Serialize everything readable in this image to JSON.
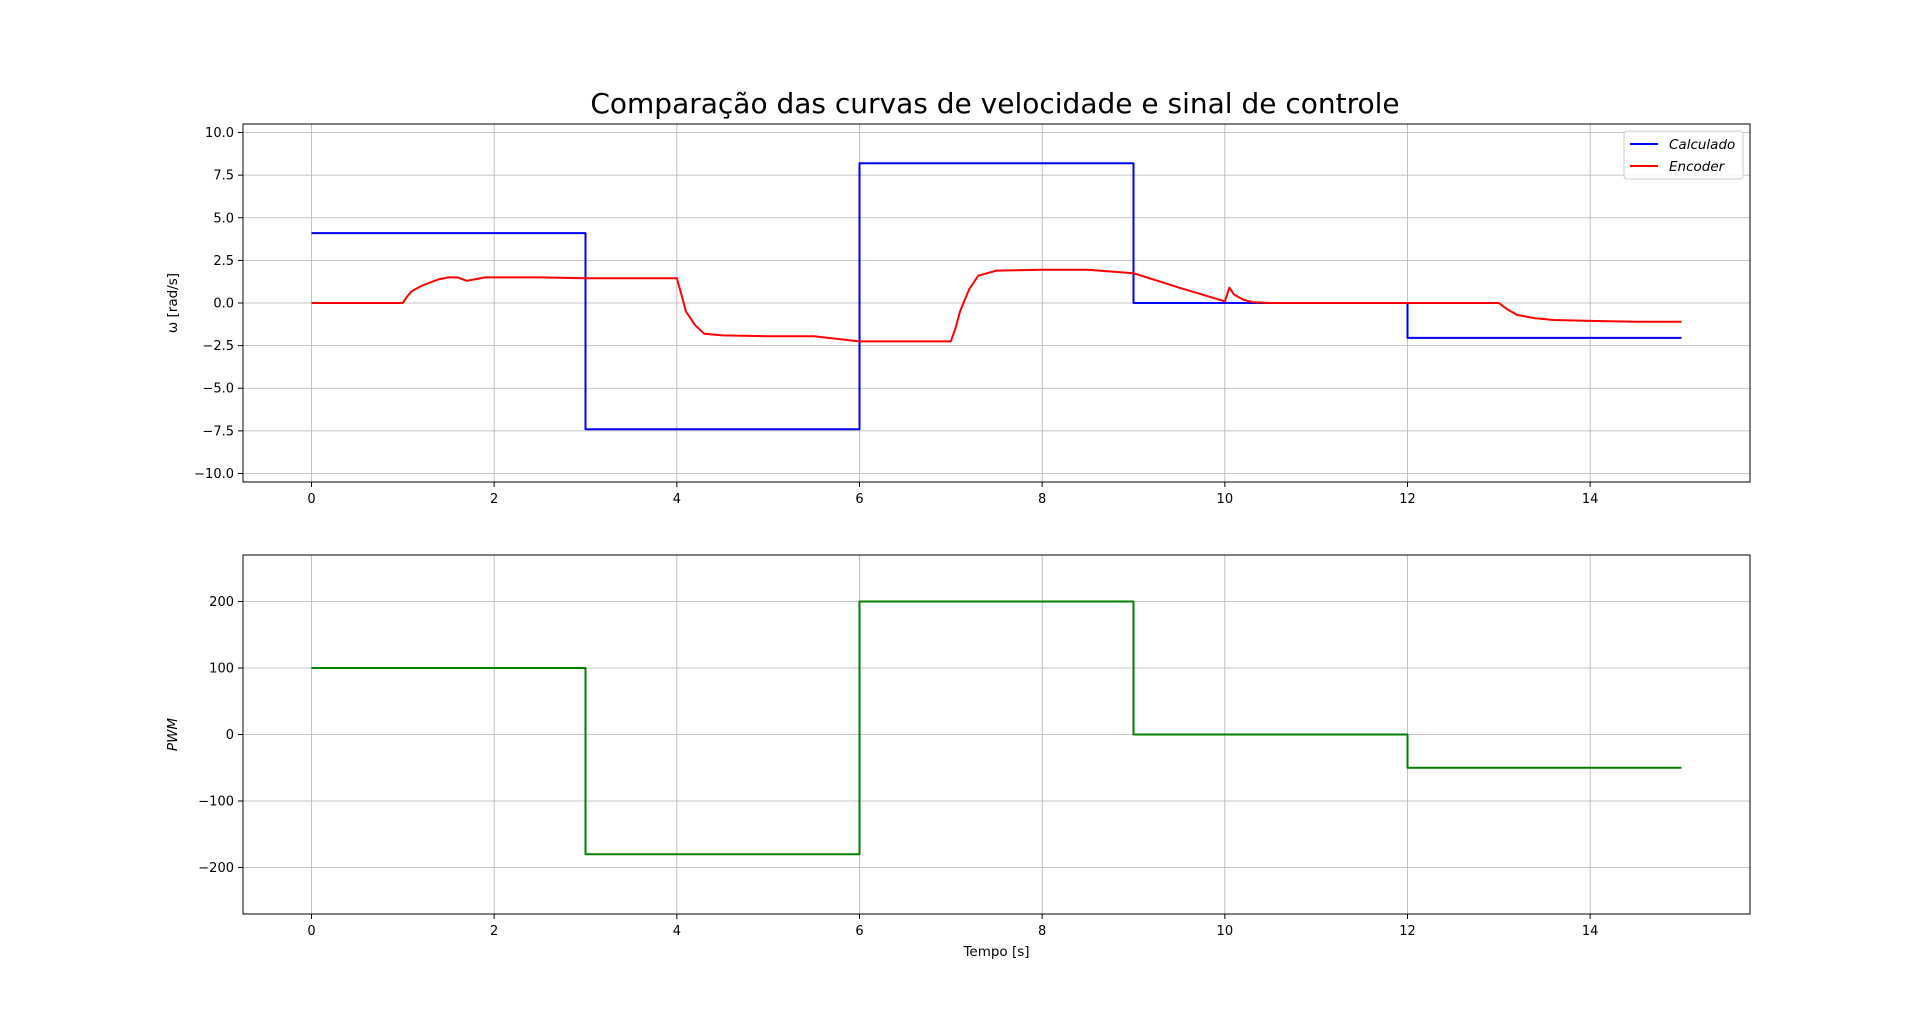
{
  "chart_data": {
    "title": "Comparação das curvas de velocidade e sinal de controle",
    "panels": [
      {
        "type": "line",
        "ylabel": "ω [rad/s]",
        "xlabel": "",
        "xlim": [
          -0.75,
          15.75
        ],
        "ylim": [
          -10.5,
          10.5
        ],
        "xticks": [
          0,
          2,
          4,
          6,
          8,
          10,
          12,
          14
        ],
        "yticks": [
          10.0,
          7.5,
          5.0,
          2.5,
          0.0,
          -2.5,
          -5.0,
          -7.5,
          -10.0
        ],
        "ytick_labels": [
          "10.0",
          "7.5",
          "5.0",
          "2.5",
          "0.0",
          "−2.5",
          "−5.0",
          "−7.5",
          "−10.0"
        ],
        "grid": true,
        "legend": "top-right",
        "series": [
          {
            "name": "Calculado",
            "color": "#0000ff",
            "x": [
              0,
              3,
              3,
              6,
              6,
              9,
              9,
              12,
              12,
              15
            ],
            "y": [
              4.1,
              4.1,
              -7.4,
              -7.4,
              8.2,
              8.2,
              0.0,
              0.0,
              -2.05,
              -2.05
            ]
          },
          {
            "name": "Encoder",
            "color": "#ff0000",
            "x": [
              0,
              1.0,
              1.05,
              1.1,
              1.2,
              1.3,
              1.4,
              1.5,
              1.6,
              1.7,
              1.8,
              1.9,
              2.0,
              2.5,
              3.0,
              3.5,
              4.0,
              4.05,
              4.1,
              4.2,
              4.3,
              4.5,
              5.0,
              5.5,
              6.0,
              6.5,
              7.0,
              7.05,
              7.1,
              7.2,
              7.3,
              7.5,
              8.0,
              8.5,
              9.0,
              9.5,
              10.0,
              10.05,
              10.1,
              10.2,
              10.3,
              10.5,
              11.0,
              11.5,
              12.0,
              12.5,
              13.0,
              13.1,
              13.2,
              13.4,
              13.6,
              14.0,
              14.5,
              15.0
            ],
            "y": [
              0.0,
              0.0,
              0.4,
              0.7,
              1.0,
              1.2,
              1.4,
              1.5,
              1.5,
              1.3,
              1.4,
              1.5,
              1.5,
              1.5,
              1.45,
              1.45,
              1.45,
              0.5,
              -0.5,
              -1.3,
              -1.8,
              -1.9,
              -1.95,
              -1.95,
              -2.25,
              -2.25,
              -2.25,
              -1.5,
              -0.5,
              0.8,
              1.6,
              1.9,
              1.95,
              1.95,
              1.75,
              0.9,
              0.1,
              0.9,
              0.5,
              0.2,
              0.05,
              0.0,
              0.0,
              0.0,
              0.0,
              0.0,
              0.0,
              -0.4,
              -0.7,
              -0.9,
              -1.0,
              -1.05,
              -1.1,
              -1.1
            ]
          }
        ]
      },
      {
        "type": "line",
        "ylabel": "PWM",
        "xlabel": "Tempo [s]",
        "xlim": [
          -0.75,
          15.75
        ],
        "ylim": [
          -270,
          270
        ],
        "xticks": [
          0,
          2,
          4,
          6,
          8,
          10,
          12,
          14
        ],
        "yticks": [
          200,
          100,
          0,
          -100,
          -200
        ],
        "ytick_labels": [
          "200",
          "100",
          "0",
          "−100",
          "−200"
        ],
        "grid": true,
        "series": [
          {
            "color": "#008000",
            "x": [
              0,
              3,
              3,
              6,
              6,
              9,
              9,
              12,
              12,
              15
            ],
            "y": [
              100,
              100,
              -180,
              -180,
              200,
              200,
              0,
              0,
              -50,
              -50
            ]
          }
        ]
      }
    ]
  }
}
